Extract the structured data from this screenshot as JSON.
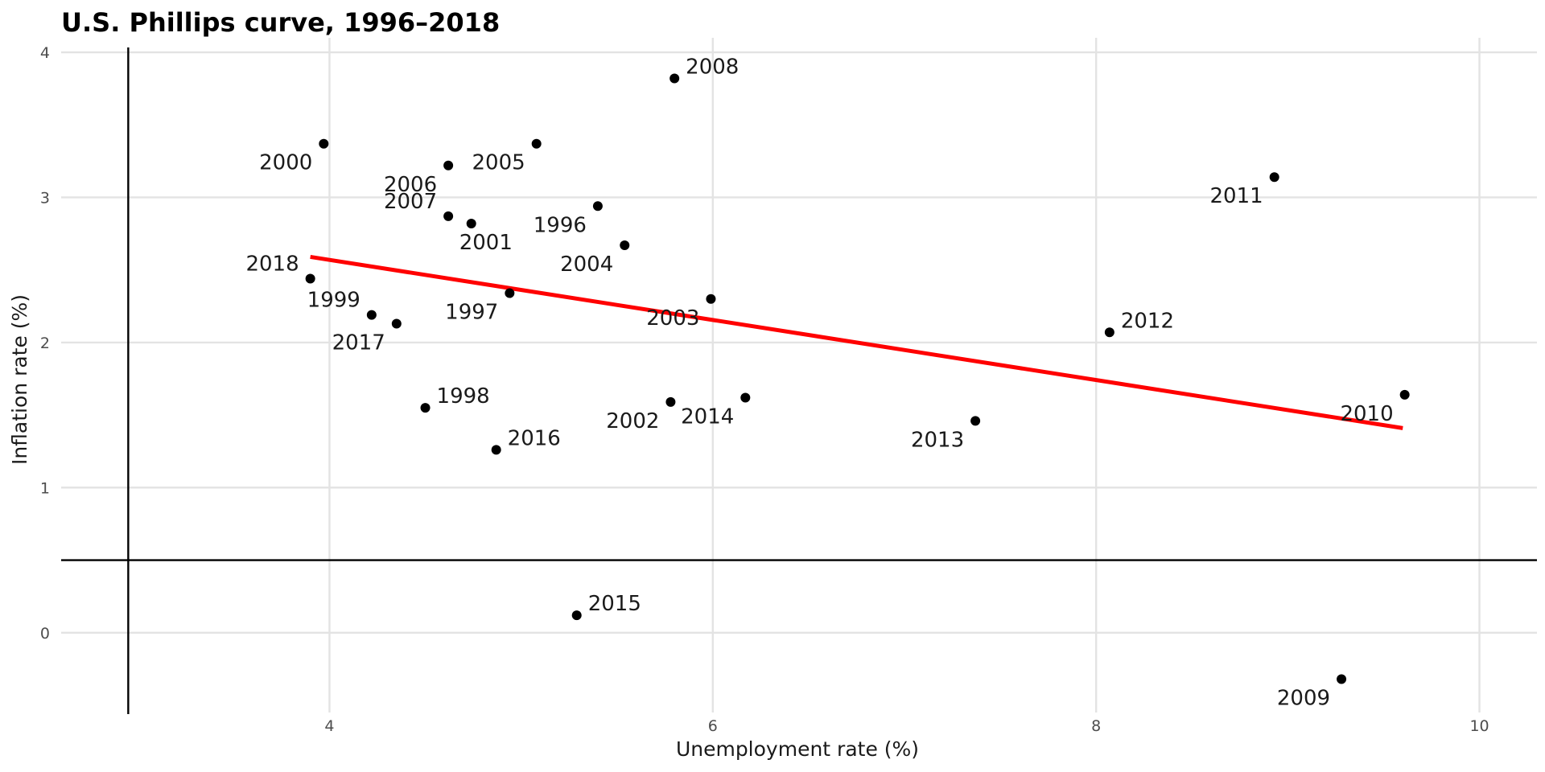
{
  "chart_data": {
    "type": "scatter",
    "title": "U.S. Phillips curve, 1996–2018",
    "xlabel": "Unemployment rate (%)",
    "ylabel": "Inflation rate (%)",
    "xlim": [
      2.6,
      10.3
    ],
    "ylim": [
      -0.55,
      4.1
    ],
    "x_ticks": [
      4,
      6,
      8,
      10
    ],
    "y_ticks": [
      0,
      1,
      2,
      3,
      4
    ],
    "grid": true,
    "reference_lines": {
      "vertical_x": 2.95,
      "horizontal_y": 0.5
    },
    "trend_line": {
      "color": "#ff0000",
      "x": [
        3.9,
        9.6
      ],
      "y": [
        2.59,
        1.41
      ]
    },
    "point_color": "#000000",
    "points": [
      {
        "label": "1996",
        "x": 5.4,
        "y": 2.94,
        "label_pos": "left-below"
      },
      {
        "label": "1997",
        "x": 4.94,
        "y": 2.34,
        "label_pos": "left-below"
      },
      {
        "label": "1998",
        "x": 4.5,
        "y": 1.55,
        "label_pos": "right-above"
      },
      {
        "label": "1999",
        "x": 4.22,
        "y": 2.19,
        "label_pos": "left-above"
      },
      {
        "label": "2000",
        "x": 3.97,
        "y": 3.37,
        "label_pos": "left-below"
      },
      {
        "label": "2001",
        "x": 4.74,
        "y": 2.82,
        "label_pos": "right-below"
      },
      {
        "label": "2002",
        "x": 5.78,
        "y": 1.59,
        "label_pos": "left-below"
      },
      {
        "label": "2003",
        "x": 5.99,
        "y": 2.3,
        "label_pos": "left-below"
      },
      {
        "label": "2004",
        "x": 5.54,
        "y": 2.67,
        "label_pos": "left-below"
      },
      {
        "label": "2005",
        "x": 5.08,
        "y": 3.37,
        "label_pos": "left-below"
      },
      {
        "label": "2006",
        "x": 4.62,
        "y": 3.22,
        "label_pos": "left-below"
      },
      {
        "label": "2007",
        "x": 4.62,
        "y": 2.87,
        "label_pos": "left-above"
      },
      {
        "label": "2008",
        "x": 5.8,
        "y": 3.82,
        "label_pos": "right-above"
      },
      {
        "label": "2009",
        "x": 9.28,
        "y": -0.32,
        "label_pos": "left-below"
      },
      {
        "label": "2010",
        "x": 9.61,
        "y": 1.64,
        "label_pos": "left-below"
      },
      {
        "label": "2011",
        "x": 8.93,
        "y": 3.14,
        "label_pos": "left-below"
      },
      {
        "label": "2012",
        "x": 8.07,
        "y": 2.07,
        "label_pos": "right-above"
      },
      {
        "label": "2013",
        "x": 7.37,
        "y": 1.46,
        "label_pos": "left-below"
      },
      {
        "label": "2014",
        "x": 6.17,
        "y": 1.62,
        "label_pos": "left-below"
      },
      {
        "label": "2015",
        "x": 5.29,
        "y": 0.12,
        "label_pos": "right-above"
      },
      {
        "label": "2016",
        "x": 4.87,
        "y": 1.26,
        "label_pos": "right-above"
      },
      {
        "label": "2017",
        "x": 4.35,
        "y": 2.13,
        "label_pos": "left-below"
      },
      {
        "label": "2018",
        "x": 3.9,
        "y": 2.44,
        "label_pos": "left-above"
      }
    ]
  }
}
